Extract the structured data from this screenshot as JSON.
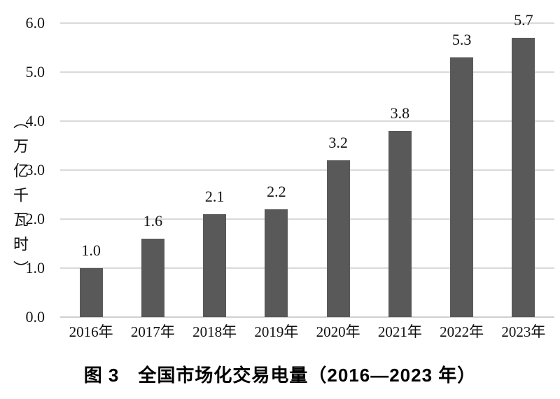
{
  "figure": {
    "caption": "图 3　全国市场化交易电量（2016—2023 年）"
  },
  "chart_data": {
    "type": "bar",
    "title": "",
    "xlabel": "",
    "ylabel": "（万亿千瓦时）",
    "categories": [
      "2016年",
      "2017年",
      "2018年",
      "2019年",
      "2020年",
      "2021年",
      "2022年",
      "2023年"
    ],
    "values": [
      1.0,
      1.6,
      2.1,
      2.2,
      3.2,
      3.8,
      5.3,
      5.7
    ],
    "data_labels": [
      "1.0",
      "1.6",
      "2.1",
      "2.2",
      "3.2",
      "3.8",
      "5.3",
      "5.7"
    ],
    "ylim": [
      0,
      6
    ],
    "yticks": [
      0.0,
      1.0,
      2.0,
      3.0,
      4.0,
      5.0,
      6.0
    ],
    "ytick_labels": [
      "0.0",
      "1.0",
      "2.0",
      "3.0",
      "4.0",
      "5.0",
      "6.0"
    ],
    "grid": "horizontal",
    "legend": "none",
    "bar_color": "#595959",
    "gridline_color": "#d9d9d9",
    "text_color": "#111111",
    "background_color": "#ffffff"
  }
}
